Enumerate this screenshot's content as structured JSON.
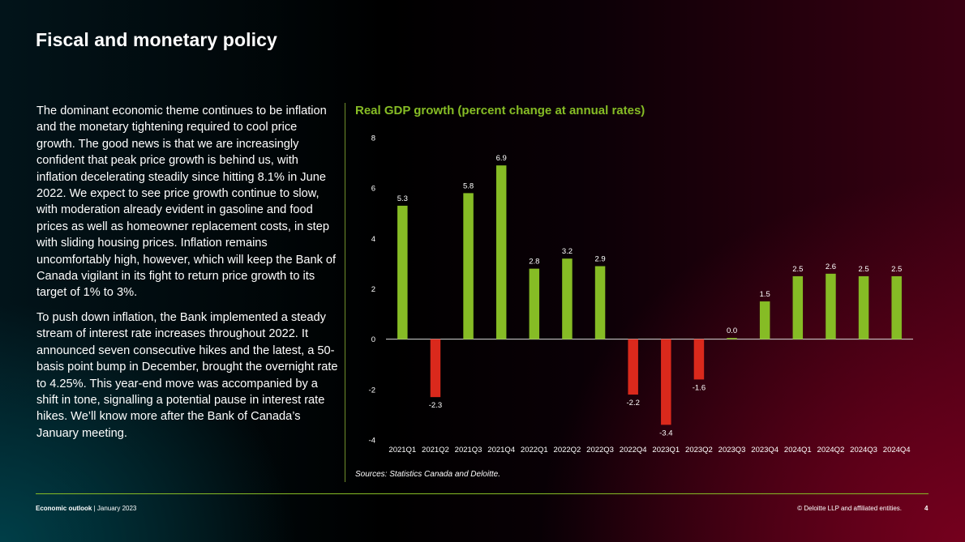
{
  "slide": {
    "title": "Fiscal and monetary policy",
    "paragraphs": [
      "The dominant economic theme continues to be inflation and the monetary tightening required to cool price growth. The good news is that we are increasingly confident that peak price growth is behind us, with inflation decelerating steadily since hitting 8.1% in June 2022. We expect to see price growth continue to slow, with moderation already evident in gasoline and food prices as well as homeowner replacement costs, in step with sliding housing prices. Inflation remains uncomfortably high, however, which will keep the Bank of Canada vigilant in its fight to return price growth to its target of 1% to 3%.",
      "To push down inflation, the Bank implemented a steady stream of interest rate increases throughout 2022. It announced seven consecutive hikes and the latest, a 50-basis point bump in  December, brought the overnight rate to 4.25%.  This year-end move was accompanied by a shift in tone, signalling a potential pause in interest rate hikes. We’ll know more after the Bank of Canada’s  January meeting."
    ],
    "sources": "Sources:  Statistics Canada and Deloitte."
  },
  "footer": {
    "publication": "Economic outlook",
    "date": "| January 2023",
    "copyright": "© Deloitte LLP and affiliated entities.",
    "page_number": "4"
  },
  "colors": {
    "positive": "#86bc25",
    "negative": "#da291c",
    "accent": "#86bc25"
  },
  "chart_data": {
    "type": "bar",
    "title": "Real GDP growth (percent change at annual rates)",
    "xlabel": "",
    "ylabel": "",
    "ylim": [
      -4,
      8
    ],
    "yticks": [
      -4,
      -2,
      0,
      2,
      4,
      6,
      8
    ],
    "grid": false,
    "categories": [
      "2021Q1",
      "2021Q2",
      "2021Q3",
      "2021Q4",
      "2022Q1",
      "2022Q2",
      "2022Q3",
      "2022Q4",
      "2023Q1",
      "2023Q2",
      "2023Q3",
      "2023Q4",
      "2024Q1",
      "2024Q2",
      "2024Q3",
      "2024Q4"
    ],
    "values": [
      5.3,
      -2.3,
      5.8,
      6.9,
      2.8,
      3.2,
      2.9,
      -2.2,
      -3.4,
      -1.6,
      0.0,
      1.5,
      2.5,
      2.6,
      2.5,
      2.5
    ],
    "labels": [
      "5.3",
      "-2.3",
      "5.8",
      "6.9",
      "2.8",
      "3.2",
      "2.9",
      "-2.2",
      "-3.4",
      "-1.6",
      "0.0",
      "1.5",
      "2.5",
      "2.6",
      "2.5",
      "2.5"
    ]
  }
}
